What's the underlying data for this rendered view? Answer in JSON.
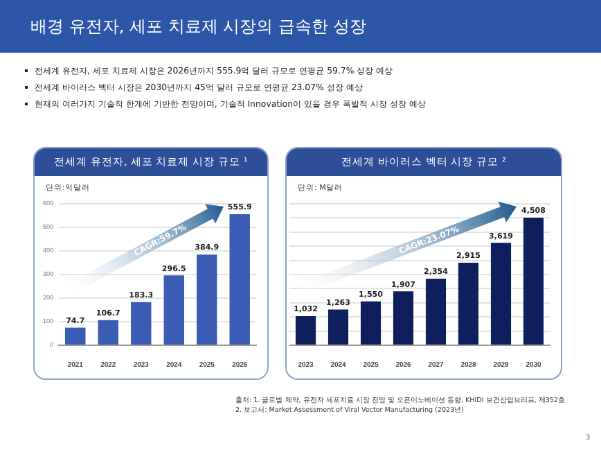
{
  "chart_data": [
    {
      "type": "bar",
      "title": "전세계 유전자, 세포 치료제 시장 규모 ¹",
      "ylabel": "단위:억달러",
      "categories": [
        "2021",
        "2022",
        "2023",
        "2024",
        "2025",
        "2026"
      ],
      "values": [
        74.7,
        106.7,
        183.3,
        296.5,
        384.9,
        555.9
      ],
      "color": "#3a5cb5",
      "ylim": [
        0,
        600
      ],
      "yticks": [
        0,
        100,
        200,
        300,
        400,
        500,
        600
      ],
      "grid": "y",
      "data_labels": true,
      "annotations": [
        "배경 유전자, 세포 치료제 시장의 급속한 성장",
        "전세계 유전자, 세포 치료제 시장은 2026년까지 555.9억 달러 규모로 연평균 59.7% 성장 예상",
        "전세계 바이러스 벡터 시장은 2030년까지 45억 달러 규모로 연평균 23.07% 성장 예상",
        "현재의 여러가지 기술적 한계에 기반한 전망이며, 기술적 Innovation이 있을 경우 폭발적 시장 성장 예상",
        "CAGR:59.7%"
      ]
    },
    {
      "type": "bar",
      "title": "전세계 바이러스 벡터 시장 규모 ²",
      "ylabel": "단위: M달러",
      "categories": [
        "2023",
        "2024",
        "2025",
        "2026",
        "2027",
        "2028",
        "2029",
        "2030"
      ],
      "values": [
        1032,
        1263,
        1550,
        1907,
        2354,
        2915,
        3619,
        4508
      ],
      "color": "#0f1f5e",
      "ylim": [
        0,
        5000
      ],
      "yticks": [
        {
          "value": 0,
          "label": null
        },
        {
          "value": 500,
          "label": null
        },
        {
          "value": 1000,
          "label": null
        },
        {
          "value": 1500,
          "label": null
        },
        {
          "value": 2000,
          "label": null
        },
        {
          "value": 2500,
          "label": null
        },
        {
          "value": 3000,
          "label": null
        },
        {
          "value": 3500,
          "label": null
        },
        {
          "value": 4000,
          "label": null
        },
        {
          "value": 4500,
          "label": null
        },
        {
          "value": 5000,
          "label": null
        }
      ],
      "grid": "y",
      "tick_labels": "x",
      "value_labels": [
        "1,032",
        "1,263",
        "1,550",
        "1,907",
        "2,354",
        "2,915",
        "3,619",
        "4,508"
      ],
      "annotations": [
        "CAGR:23.07%",
        "출처: 1. 글로벌 제약, 유전자 세포치료 시장 전망 및 오픈이노베이션 동향, KHIDI 보건산업브리프, 제352호",
        "2. 보고서: Market Assessment of Viral Vector Manufacturing (2023년)",
        "3"
      ]
    }
  ]
}
